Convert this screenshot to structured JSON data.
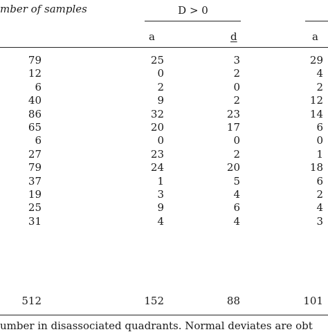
{
  "header": {
    "samples_label": "mber of samples",
    "group_label": "D > 0"
  },
  "subheaders": {
    "a1": "a",
    "d": "d",
    "a2": "a"
  },
  "rows": [
    {
      "n": "79",
      "a1": "25",
      "d": "3",
      "a2": "29"
    },
    {
      "n": "12",
      "a1": "0",
      "d": "2",
      "a2": "4"
    },
    {
      "n": "6",
      "a1": "2",
      "d": "0",
      "a2": "2"
    },
    {
      "n": "40",
      "a1": "9",
      "d": "2",
      "a2": "12"
    },
    {
      "n": "86",
      "a1": "32",
      "d": "23",
      "a2": "14"
    },
    {
      "n": "65",
      "a1": "20",
      "d": "17",
      "a2": "6"
    },
    {
      "n": "6",
      "a1": "0",
      "d": "0",
      "a2": "0"
    },
    {
      "n": "27",
      "a1": "23",
      "d": "2",
      "a2": "1"
    },
    {
      "n": "79",
      "a1": "24",
      "d": "20",
      "a2": "18"
    },
    {
      "n": "37",
      "a1": "1",
      "d": "5",
      "a2": "6"
    },
    {
      "n": "19",
      "a1": "3",
      "d": "4",
      "a2": "2"
    },
    {
      "n": "25",
      "a1": "9",
      "d": "6",
      "a2": "4"
    },
    {
      "n": "31",
      "a1": "4",
      "d": "4",
      "a2": "3"
    }
  ],
  "totals": {
    "n": "512",
    "a1": "152",
    "d": "88",
    "a2": "101"
  },
  "footnote": "umber in disassociated quadrants. Normal deviates are obt"
}
